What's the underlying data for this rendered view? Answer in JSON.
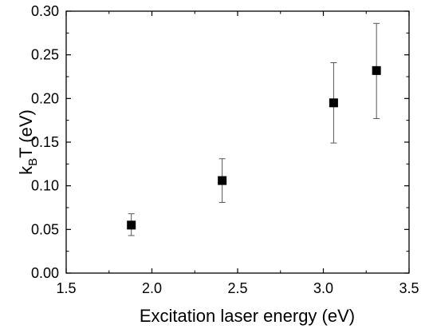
{
  "chart_data": {
    "type": "scatter",
    "title": "",
    "xlabel": "Excitation laser energy (eV)",
    "ylabel": {
      "k": "k",
      "sub": "B",
      "rest": "T (eV)"
    },
    "xlim": [
      1.5,
      3.5
    ],
    "ylim": [
      0.0,
      0.3
    ],
    "x_ticks": [
      "1.5",
      "2.0",
      "2.5",
      "3.0",
      "3.5"
    ],
    "y_ticks": [
      "0.00",
      "0.05",
      "0.10",
      "0.15",
      "0.20",
      "0.25",
      "0.30"
    ],
    "grid": false,
    "legend": "none",
    "marker": "square",
    "marker_color": "#000000",
    "series": [
      {
        "x": [
          1.88,
          2.41,
          3.06,
          3.31
        ],
        "y": [
          0.055,
          0.106,
          0.195,
          0.232
        ],
        "err_low": [
          0.043,
          0.081,
          0.149,
          0.177
        ],
        "err_high": [
          0.068,
          0.131,
          0.241,
          0.286
        ]
      }
    ]
  }
}
